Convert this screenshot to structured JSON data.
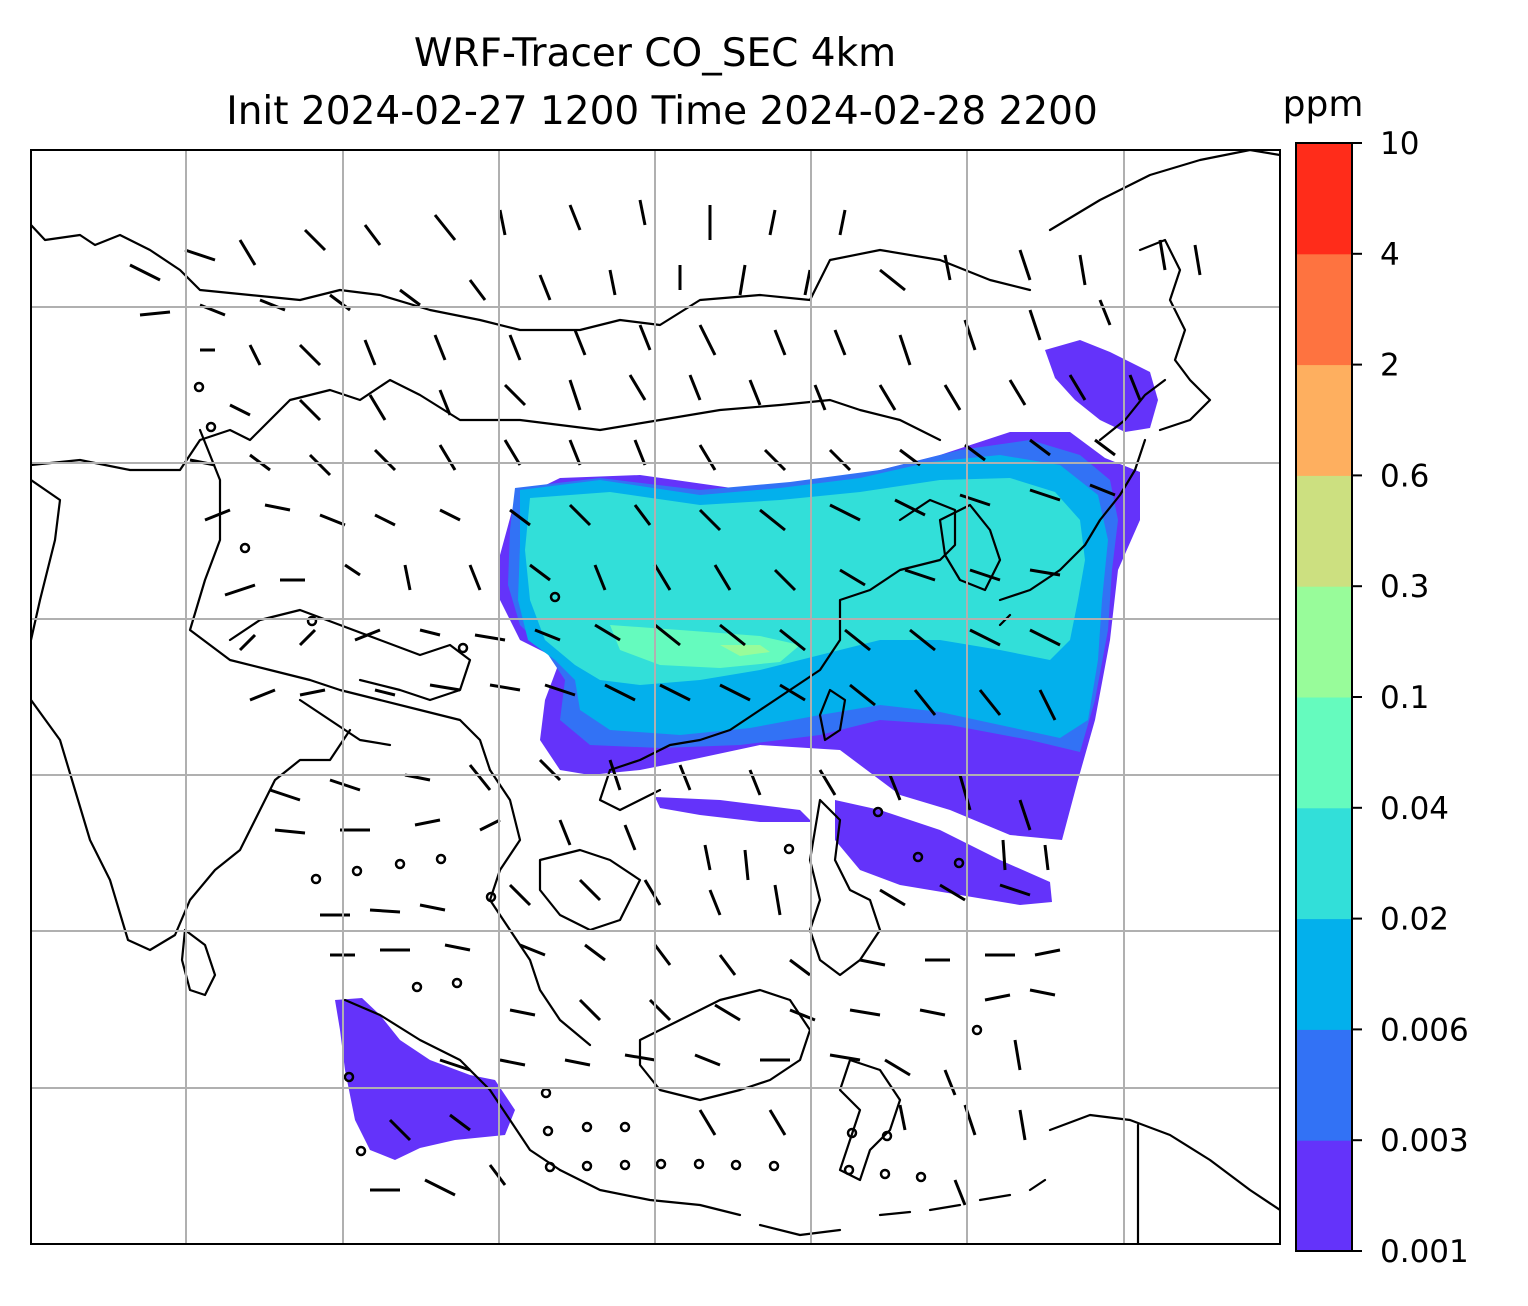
{
  "title": {
    "line1": "WRF-Tracer CO_SEC 4km",
    "line2": "Init 2024-02-27 1200 Time 2024-02-28 2200"
  },
  "colorbar": {
    "unit": "ppm",
    "levels": [
      "0.001",
      "0.003",
      "0.006",
      "0.02",
      "0.04",
      "0.1",
      "0.3",
      "0.6",
      "2",
      "4",
      "10"
    ],
    "colors": [
      "#6433fa",
      "#3272f5",
      "#03b0ec",
      "#32dfd9",
      "#65fbbe",
      "#98fc9a",
      "#cce080",
      "#feaf5f",
      "#fe7340",
      "#ff2c1a"
    ]
  },
  "map": {
    "gridlines": true,
    "grid_color": "#b0b0b0",
    "coast_color": "#000000"
  },
  "wind_barbs": {
    "color": "#000000",
    "calm_marker": "circle"
  }
}
